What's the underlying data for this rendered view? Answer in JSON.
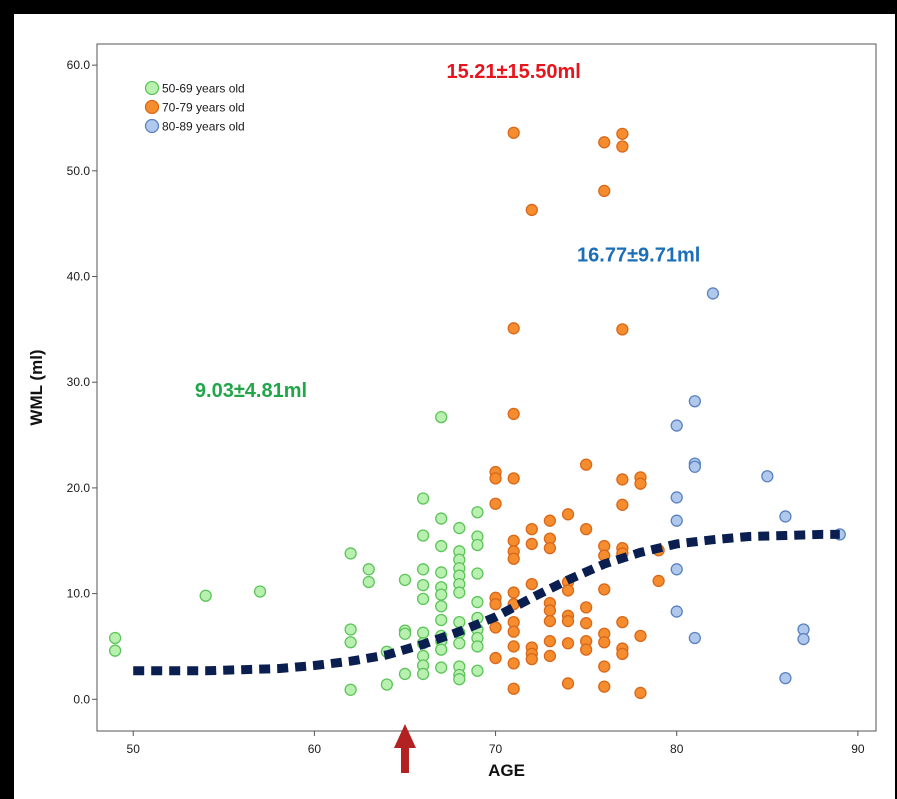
{
  "chart_data": {
    "type": "scatter",
    "xlabel": "AGE",
    "ylabel": "WML (ml)",
    "xlim": [
      48,
      91
    ],
    "ylim": [
      -3,
      62
    ],
    "x_ticks": [
      50,
      60,
      70,
      80,
      90
    ],
    "x_tick_labels": [
      "50",
      "60",
      "70",
      "80",
      "90"
    ],
    "y_ticks": [
      0,
      10,
      20,
      30,
      40,
      50,
      60
    ],
    "y_tick_labels": [
      "0.0",
      "10.0",
      "20.0",
      "30.0",
      "40.0",
      "50.0",
      "60.0"
    ],
    "grid": false,
    "legend_position": "top-left",
    "series": [
      {
        "name": "50-69 years old",
        "fill": "#b8f0b0",
        "stroke": "#5ec45a",
        "points": [
          [
            49,
            5.8
          ],
          [
            49,
            4.6
          ],
          [
            54,
            9.8
          ],
          [
            57,
            10.2
          ],
          [
            62,
            13.8
          ],
          [
            62,
            6.6
          ],
          [
            62,
            5.4
          ],
          [
            62,
            0.9
          ],
          [
            63,
            12.3
          ],
          [
            63,
            11.1
          ],
          [
            64,
            4.5
          ],
          [
            64,
            1.4
          ],
          [
            65,
            11.3
          ],
          [
            65,
            6.5
          ],
          [
            65,
            6.2
          ],
          [
            65,
            2.4
          ],
          [
            66,
            19.0
          ],
          [
            66,
            15.5
          ],
          [
            66,
            12.3
          ],
          [
            66,
            10.8
          ],
          [
            66,
            9.5
          ],
          [
            66,
            6.3
          ],
          [
            66,
            5.3
          ],
          [
            66,
            4.1
          ],
          [
            66,
            3.2
          ],
          [
            66,
            2.4
          ],
          [
            67,
            26.7
          ],
          [
            67,
            17.1
          ],
          [
            67,
            14.5
          ],
          [
            67,
            12.0
          ],
          [
            67,
            10.6
          ],
          [
            67,
            9.9
          ],
          [
            67,
            8.8
          ],
          [
            67,
            7.5
          ],
          [
            67,
            6.0
          ],
          [
            67,
            5.5
          ],
          [
            67,
            4.7
          ],
          [
            67,
            3.0
          ],
          [
            68,
            16.2
          ],
          [
            68,
            14.0
          ],
          [
            68,
            13.2
          ],
          [
            68,
            12.4
          ],
          [
            68,
            11.7
          ],
          [
            68,
            10.9
          ],
          [
            68,
            10.1
          ],
          [
            68,
            7.3
          ],
          [
            68,
            6.3
          ],
          [
            68,
            5.3
          ],
          [
            68,
            3.1
          ],
          [
            68,
            2.3
          ],
          [
            68,
            1.9
          ],
          [
            69,
            17.7
          ],
          [
            69,
            15.4
          ],
          [
            69,
            14.6
          ],
          [
            69,
            11.9
          ],
          [
            69,
            9.2
          ],
          [
            69,
            7.7
          ],
          [
            69,
            6.6
          ],
          [
            69,
            5.8
          ],
          [
            69,
            5.0
          ],
          [
            69,
            2.7
          ]
        ]
      },
      {
        "name": "70-79 years old",
        "fill": "#f58c2e",
        "stroke": "#d9681a",
        "points": [
          [
            70,
            21.5
          ],
          [
            70,
            20.9
          ],
          [
            70,
            18.5
          ],
          [
            70,
            9.6
          ],
          [
            70,
            9.0
          ],
          [
            70,
            6.8
          ],
          [
            70,
            3.9
          ],
          [
            71,
            53.6
          ],
          [
            71,
            35.1
          ],
          [
            71,
            27.0
          ],
          [
            71,
            20.9
          ],
          [
            71,
            15.0
          ],
          [
            71,
            14.0
          ],
          [
            71,
            13.3
          ],
          [
            71,
            10.1
          ],
          [
            71,
            9.0
          ],
          [
            71,
            7.3
          ],
          [
            71,
            6.4
          ],
          [
            71,
            5.0
          ],
          [
            71,
            3.4
          ],
          [
            71,
            1.0
          ],
          [
            72,
            46.3
          ],
          [
            72,
            16.1
          ],
          [
            72,
            14.7
          ],
          [
            72,
            10.9
          ],
          [
            72,
            4.9
          ],
          [
            72,
            4.3
          ],
          [
            72,
            3.8
          ],
          [
            73,
            16.9
          ],
          [
            73,
            15.2
          ],
          [
            73,
            14.3
          ],
          [
            73,
            9.1
          ],
          [
            73,
            8.4
          ],
          [
            73,
            7.4
          ],
          [
            73,
            5.5
          ],
          [
            73,
            4.1
          ],
          [
            74,
            17.5
          ],
          [
            74,
            11.1
          ],
          [
            74,
            10.3
          ],
          [
            74,
            7.9
          ],
          [
            74,
            7.4
          ],
          [
            74,
            5.3
          ],
          [
            74,
            1.5
          ],
          [
            75,
            22.2
          ],
          [
            75,
            16.1
          ],
          [
            75,
            8.7
          ],
          [
            75,
            7.2
          ],
          [
            75,
            5.5
          ],
          [
            75,
            4.7
          ],
          [
            76,
            52.7
          ],
          [
            76,
            48.1
          ],
          [
            76,
            14.5
          ],
          [
            76,
            13.6
          ],
          [
            76,
            10.4
          ],
          [
            76,
            6.2
          ],
          [
            76,
            5.4
          ],
          [
            76,
            3.1
          ],
          [
            76,
            1.2
          ],
          [
            77,
            53.5
          ],
          [
            77,
            52.3
          ],
          [
            77,
            35.0
          ],
          [
            77,
            20.8
          ],
          [
            77,
            18.4
          ],
          [
            77,
            14.3
          ],
          [
            77,
            13.8
          ],
          [
            77,
            7.3
          ],
          [
            77,
            4.8
          ],
          [
            77,
            4.3
          ],
          [
            78,
            21.0
          ],
          [
            78,
            20.4
          ],
          [
            78,
            6.0
          ],
          [
            78,
            0.6
          ],
          [
            79,
            14.1
          ],
          [
            79,
            11.2
          ]
        ]
      },
      {
        "name": "80-89 years old",
        "fill": "#b0c8ec",
        "stroke": "#5b82c0",
        "points": [
          [
            80,
            25.9
          ],
          [
            80,
            19.1
          ],
          [
            80,
            16.9
          ],
          [
            80,
            12.3
          ],
          [
            80,
            8.3
          ],
          [
            81,
            28.2
          ],
          [
            81,
            22.3
          ],
          [
            81,
            22.0
          ],
          [
            81,
            5.8
          ],
          [
            82,
            38.4
          ],
          [
            85,
            21.1
          ],
          [
            86,
            17.3
          ],
          [
            86,
            2.0
          ],
          [
            87,
            6.6
          ],
          [
            87,
            5.7
          ],
          [
            89,
            15.6
          ]
        ]
      }
    ],
    "trend_line": {
      "points": [
        [
          50,
          2.7
        ],
        [
          52,
          2.7
        ],
        [
          54,
          2.7
        ],
        [
          56,
          2.8
        ],
        [
          58,
          2.9
        ],
        [
          60,
          3.2
        ],
        [
          62,
          3.6
        ],
        [
          64,
          4.2
        ],
        [
          66,
          5.2
        ],
        [
          68,
          6.4
        ],
        [
          70,
          7.8
        ],
        [
          72,
          9.6
        ],
        [
          74,
          11.3
        ],
        [
          76,
          12.8
        ],
        [
          78,
          13.9
        ],
        [
          80,
          14.7
        ],
        [
          82,
          15.1
        ],
        [
          84,
          15.4
        ],
        [
          86,
          15.5
        ],
        [
          88,
          15.6
        ],
        [
          89,
          15.6
        ]
      ],
      "color": "#0a1f4f"
    },
    "marker_arrow": {
      "x": 65,
      "color": "#b22222"
    },
    "annotations": [
      {
        "text": "15.21±15.50ml",
        "color": "#e8141c",
        "x": 71,
        "y": 58.8
      },
      {
        "text": "16.77±9.71ml",
        "color": "#1a6fb8",
        "x": 77.9,
        "y": 41.4
      },
      {
        "text": "9.03±4.81ml",
        "color": "#22a64a",
        "x": 56.5,
        "y": 28.6
      }
    ]
  }
}
